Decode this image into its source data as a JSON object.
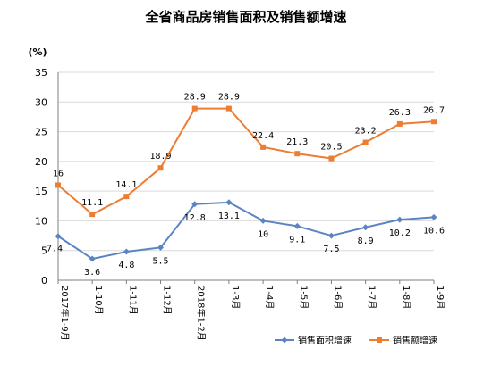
{
  "chart_data": {
    "type": "line",
    "title": "全省商品房销售面积及销售额增速",
    "ylabel": "(%)",
    "ylim": [
      0,
      35
    ],
    "yticks": [
      0,
      5,
      10,
      15,
      20,
      25,
      30,
      35
    ],
    "categories": [
      "2017年1-9月",
      "1-10月",
      "1-11月",
      "1-12月",
      "2018年1-2月",
      "1-3月",
      "1-4月",
      "1-5月",
      "1-6月",
      "1-7月",
      "1-8月",
      "1-9月"
    ],
    "grid": true,
    "legend_position": "bottom-right",
    "series": [
      {
        "name": "销售面积增速",
        "color": "#5b84c4",
        "marker": "diamond",
        "values": [
          7.4,
          3.6,
          4.8,
          5.5,
          12.8,
          13.1,
          10,
          9.1,
          7.5,
          8.9,
          10.2,
          10.6
        ],
        "labels": [
          "7.4",
          "3.6",
          "4.8",
          "5.5",
          "12.8",
          "13.1",
          "10",
          "9.1",
          "7.5",
          "8.9",
          "10.2",
          "10.6"
        ]
      },
      {
        "name": "销售额增速",
        "color": "#ed7d31",
        "marker": "square",
        "values": [
          16,
          11.1,
          14.1,
          18.9,
          28.9,
          28.9,
          22.4,
          21.3,
          20.5,
          23.2,
          26.3,
          26.7
        ],
        "labels": [
          "16",
          "11.1",
          "14.1",
          "18.9",
          "28.9",
          "28.9",
          "22.4",
          "21.3",
          "20.5",
          "23.2",
          "26.3",
          "26.7"
        ]
      }
    ]
  }
}
